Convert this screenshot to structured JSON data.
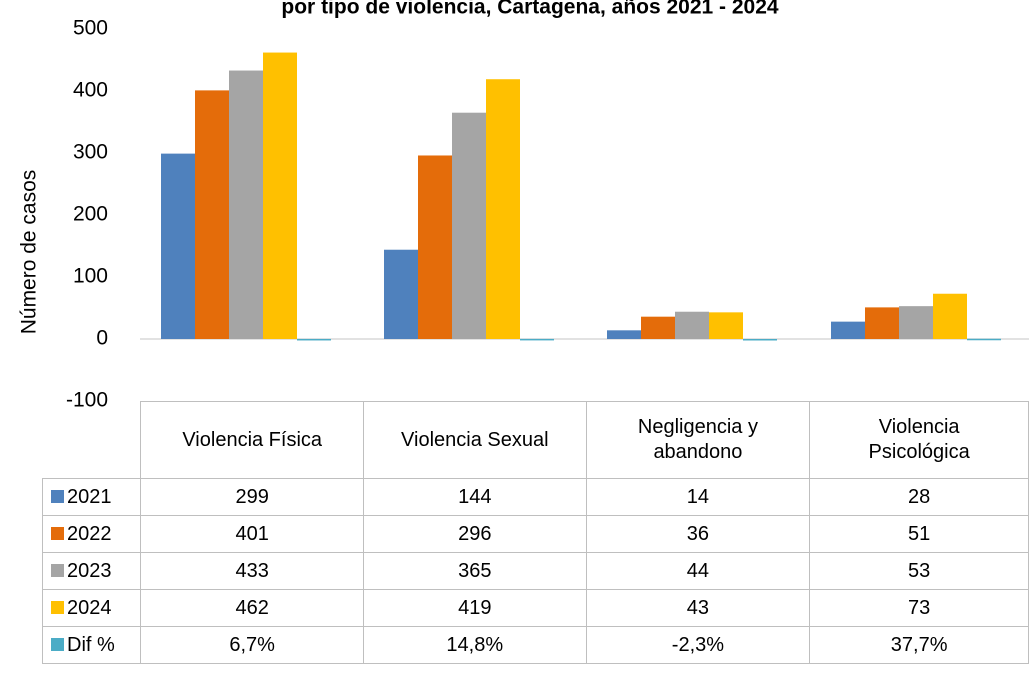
{
  "chart_data": {
    "type": "bar",
    "title": "por tipo de violencia, Cartagena, años 2021 - 2024",
    "y_label": "Número de casos",
    "categories": [
      "Violencia Física",
      "Violencia Sexual",
      "Negligencia y\nabandono",
      "Violencia\nPsicológica"
    ],
    "series": [
      {
        "name": "2021",
        "color": "#4f81bd",
        "values": [
          299,
          144,
          14,
          28
        ]
      },
      {
        "name": "2022",
        "color": "#e46c0a",
        "values": [
          401,
          296,
          36,
          51
        ]
      },
      {
        "name": "2023",
        "color": "#a5a5a5",
        "values": [
          433,
          365,
          44,
          53
        ]
      },
      {
        "name": "2024",
        "color": "#ffc000",
        "values": [
          462,
          419,
          43,
          73
        ]
      },
      {
        "name": "Dif %",
        "color": "#4bacc6",
        "values": [
          0.067,
          0.148,
          -0.023,
          0.377
        ],
        "value_labels": [
          "6,7%",
          "14,8%",
          "-2,3%",
          "37,7%"
        ]
      }
    ],
    "ylim": [
      -100,
      500
    ],
    "yticks": [
      -100,
      0,
      100,
      200,
      300,
      400,
      500
    ],
    "grid": false
  }
}
